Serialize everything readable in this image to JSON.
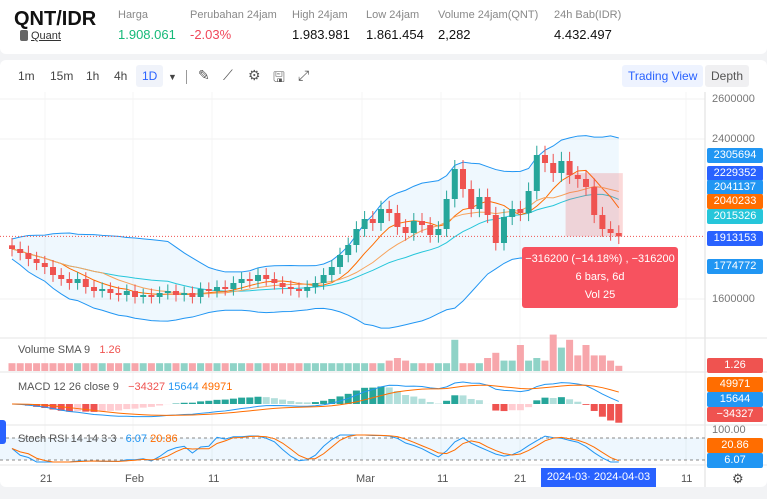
{
  "header": {
    "pair": "QNT/IDR",
    "coin_name": "Quant",
    "stats": [
      {
        "label": "Harga",
        "value": "1.908.061",
        "color": "#16b979"
      },
      {
        "label": "Perubahan 24jam",
        "value": "-2.03%",
        "color": "#f0475a"
      },
      {
        "label": "High 24jam",
        "value": "1.983.981",
        "color": "#111111"
      },
      {
        "label": "Low 24jam",
        "value": "1.861.454",
        "color": "#111111"
      },
      {
        "label": "Volume 24jam(QNT)",
        "value": "2,282",
        "color": "#111111"
      },
      {
        "label": "24h Bab(IDR)",
        "value": "4.432.497",
        "color": "#111111"
      }
    ]
  },
  "toolbar": {
    "intervals": [
      "1m",
      "15m",
      "1h",
      "4h",
      "1D"
    ],
    "selected": "1D",
    "icons": [
      "pencil-icon",
      "indicator-icon",
      "gear-icon",
      "save-icon",
      "fullscreen-icon"
    ],
    "trading_view": "Trading View",
    "depth": "Depth"
  },
  "price_axis": {
    "ticks": [
      "2600000",
      "2400000",
      "1600000"
    ],
    "tags": [
      {
        "value": "2305694",
        "color": "#2196f3"
      },
      {
        "value": "2229352",
        "color": "#2962ff"
      },
      {
        "value": "2041137",
        "color": "#2196f3"
      },
      {
        "value": "2040233",
        "color": "#ff6d00"
      },
      {
        "value": "2015326",
        "color": "#26c6da"
      },
      {
        "value": "1913153",
        "color": "#2962ff"
      },
      {
        "value": "1774772",
        "color": "#2196f3"
      }
    ]
  },
  "tooltip": {
    "line1": "−316200 (−14.18%) , −316200",
    "line2": "6 bars, 6d",
    "line3": "Vol 25"
  },
  "volume": {
    "label": "Volume SMA 9",
    "value": "1.26",
    "tag": "1.26"
  },
  "macd": {
    "label": "MACD 12 26 close 9",
    "hist": "−34327",
    "macd": "15644",
    "signal": "49971",
    "tags": [
      "49971",
      "15644",
      "−34327"
    ]
  },
  "stoch": {
    "label": "Stoch RSI 14 14 3 3",
    "k": "6.07",
    "d": "20.86",
    "tags": [
      "100.00",
      "20.86",
      "6.07"
    ]
  },
  "time_axis": {
    "labels": [
      "21",
      "Feb",
      "11",
      "Mar",
      "11",
      "21",
      "11"
    ],
    "crosshair": "2024-03·  2024-04-03"
  },
  "colors": {
    "up": "#26a69a",
    "down": "#ef5350",
    "accent": "#2962ff"
  },
  "chart_data": {
    "type": "candlestick",
    "closes": [
      1850000,
      1830000,
      1800000,
      1780000,
      1760000,
      1720000,
      1700000,
      1680000,
      1700000,
      1660000,
      1640000,
      1650000,
      1630000,
      1620000,
      1640000,
      1610000,
      1620000,
      1610000,
      1630000,
      1640000,
      1620000,
      1630000,
      1610000,
      1650000,
      1640000,
      1660000,
      1650000,
      1680000,
      1700000,
      1690000,
      1720000,
      1700000,
      1680000,
      1660000,
      1650000,
      1640000,
      1660000,
      1680000,
      1720000,
      1760000,
      1820000,
      1870000,
      1950000,
      2000000,
      1980000,
      2050000,
      2030000,
      1960000,
      1930000,
      1990000,
      1970000,
      1920000,
      1950000,
      2100000,
      2250000,
      2150000,
      2050000,
      2110000,
      2020000,
      1880000,
      2010000,
      2050000,
      2030000,
      2140000,
      2320000,
      2280000,
      2230000,
      2290000,
      2220000,
      2200000,
      2160000,
      2020000,
      1950000,
      1930000,
      1913000
    ],
    "volume": [
      3,
      3,
      3,
      3,
      3,
      3,
      3,
      3,
      3,
      3,
      3,
      3,
      3,
      3,
      3,
      3,
      3,
      3,
      3,
      3,
      3,
      3,
      3,
      3,
      3,
      3,
      3,
      3,
      3,
      3,
      3,
      3,
      3,
      3,
      3,
      3,
      3,
      3,
      3,
      3,
      3,
      3,
      3,
      3,
      3,
      3,
      4,
      5,
      4,
      3,
      3,
      3,
      3,
      3,
      12,
      3,
      3,
      3,
      5,
      7,
      4,
      4,
      10,
      4,
      5,
      4,
      14,
      9,
      12,
      6,
      10,
      6,
      6,
      4,
      2
    ],
    "ylim": [
      1500000,
      2650000
    ]
  }
}
